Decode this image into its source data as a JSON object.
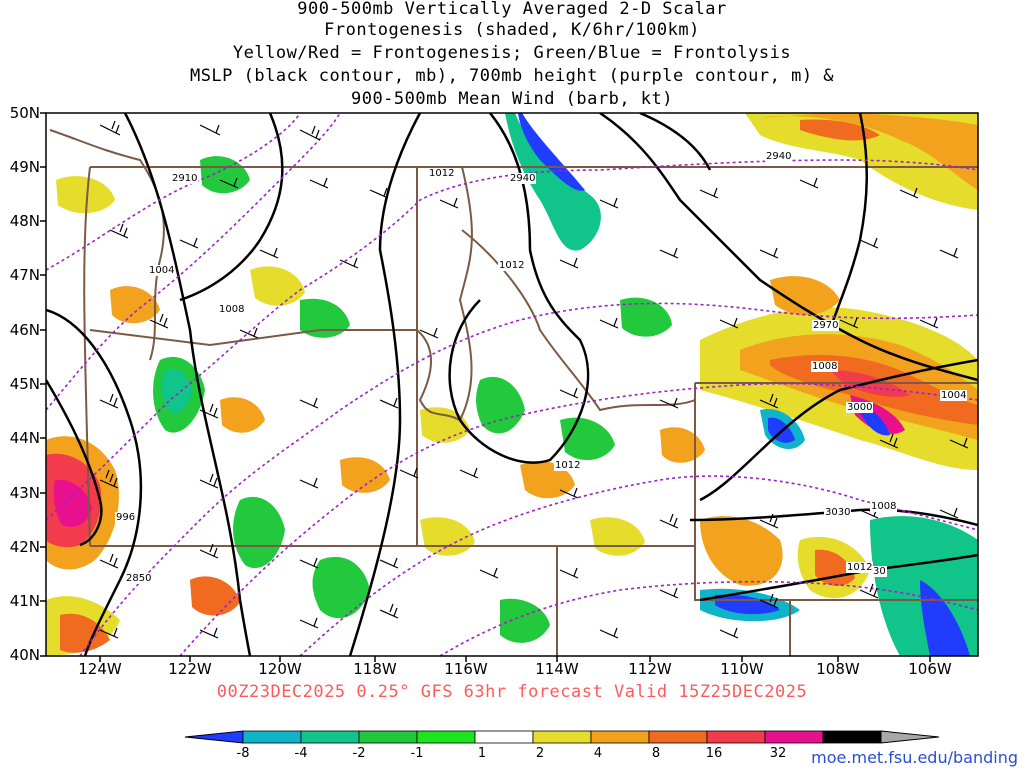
{
  "title": {
    "lines": [
      "900-500mb Vertically Averaged 2-D Scalar",
      "Frontogenesis (shaded, K/6hr/100km)",
      "Yellow/Red = Frontogenesis;  Green/Blue = Frontolysis",
      "MSLP (black contour, mb), 700mb height (purple contour, m) &",
      "900-500mb Mean Wind (barb, kt)"
    ]
  },
  "axes": {
    "lat_labels": [
      "50N",
      "49N",
      "48N",
      "47N",
      "46N",
      "45N",
      "44N",
      "43N",
      "42N",
      "41N",
      "40N"
    ],
    "lon_labels": [
      "124W",
      "122W",
      "120W",
      "118W",
      "116W",
      "114W",
      "112W",
      "110W",
      "108W",
      "106W"
    ]
  },
  "valid_time": "00Z23DEC2025 0.25° GFS 63hr forecast Valid 15Z25DEC2025",
  "contour_labels": {
    "mslp": [
      "1012",
      "1012",
      "1004",
      "1008",
      "1012",
      "996",
      "1008",
      "1004",
      "1008",
      "1012"
    ],
    "height": [
      "2910",
      "2940",
      "2940",
      "2970",
      "3000",
      "3030",
      "2850",
      "30"
    ]
  },
  "colorbar": {
    "labels": [
      "-8",
      "-4",
      "-2",
      "-1",
      "1",
      "2",
      "4",
      "8",
      "16",
      "32"
    ],
    "colors": [
      "#1f3cff",
      "#0fb4c8",
      "#10c48a",
      "#22c93c",
      "#1de51d",
      "#ffffff",
      "#e5dc2c",
      "#f2a21c",
      "#f06a20",
      "#f23c4c",
      "#e8108c",
      "#000000",
      "#a8a8a8"
    ]
  },
  "site": "moe.met.fsu.edu/banding"
}
